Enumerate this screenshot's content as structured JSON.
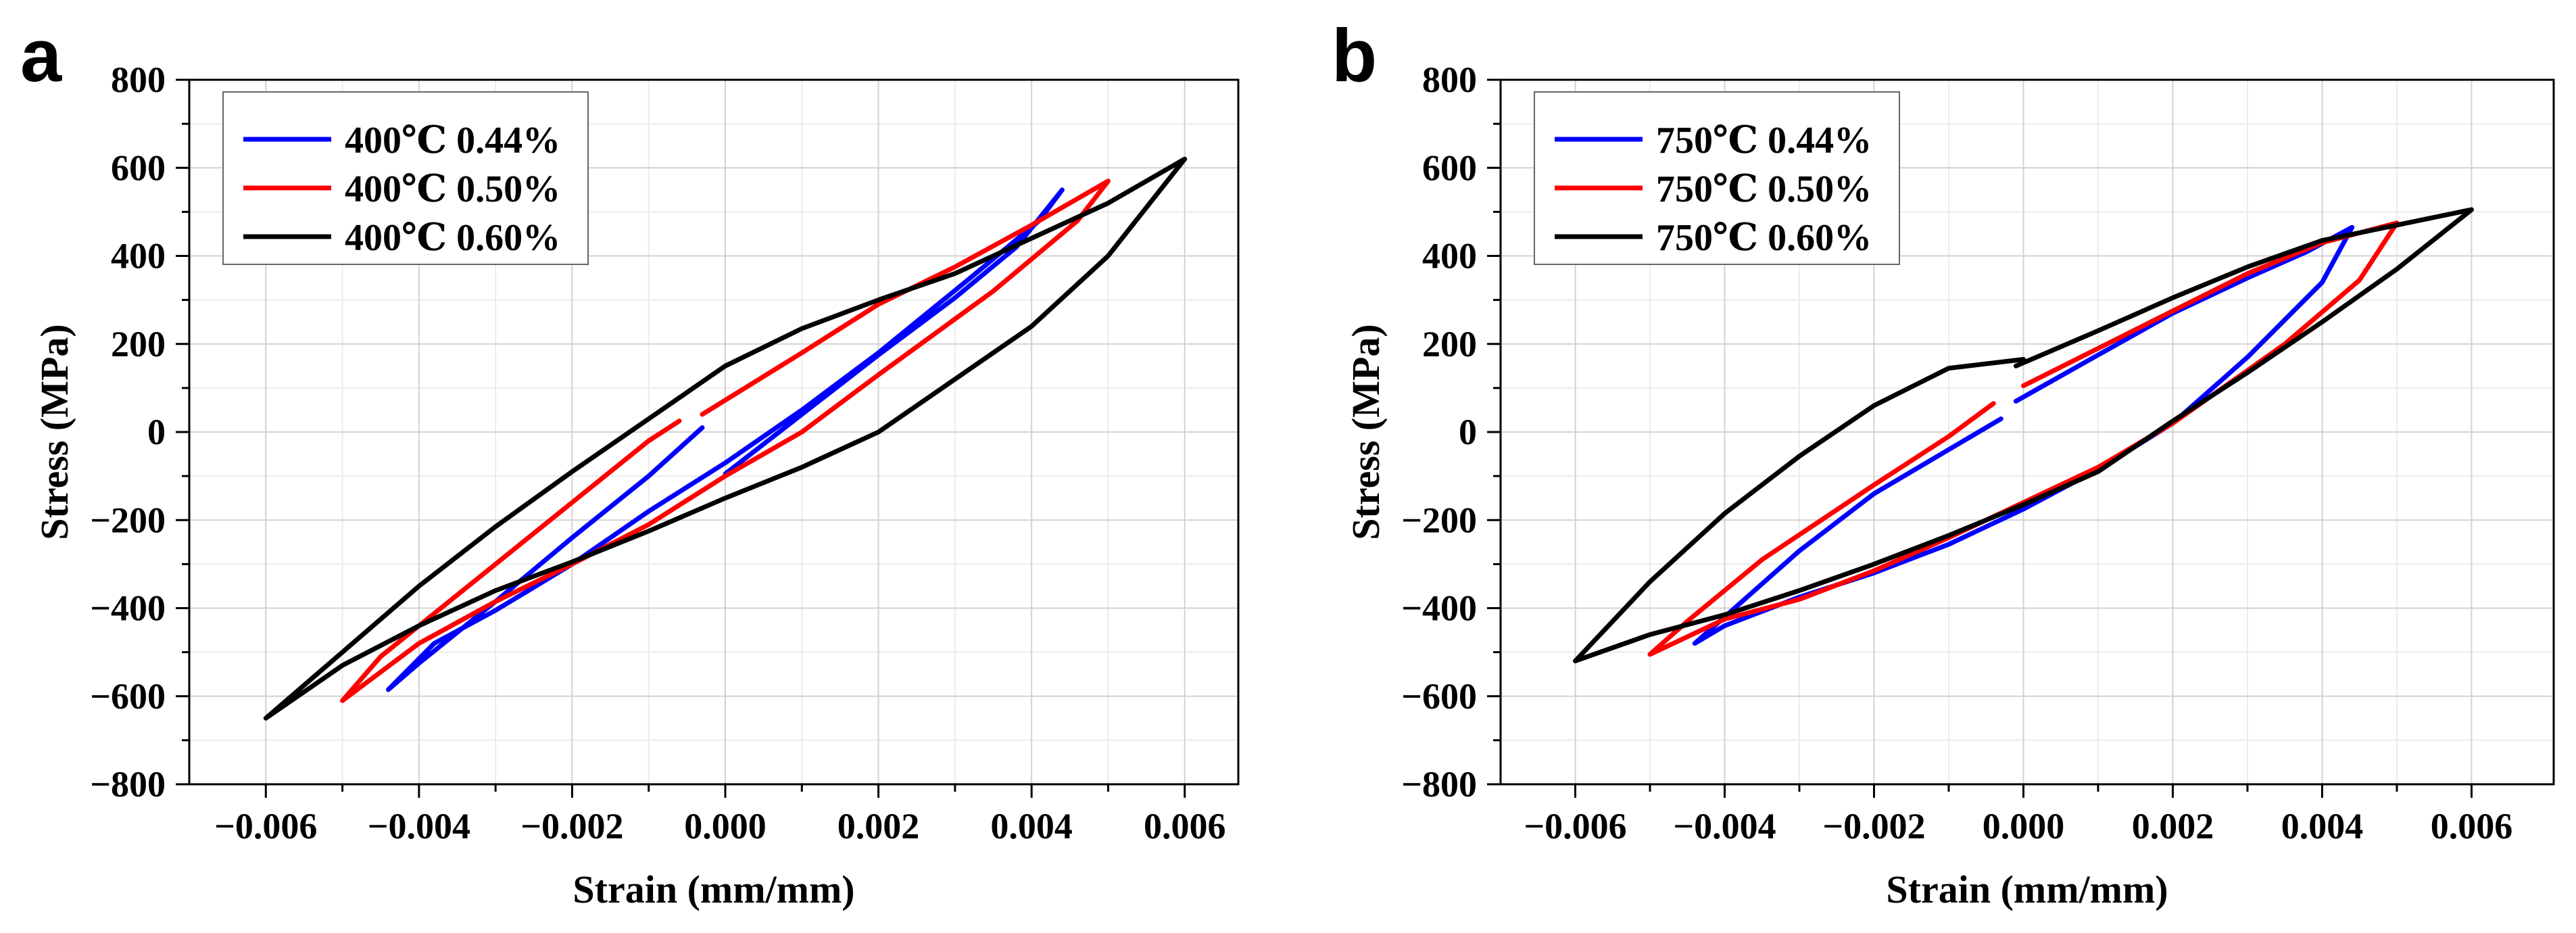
{
  "chart_data": [
    {
      "type": "line",
      "panel_label": "a",
      "xlabel": "Strain (mm/mm)",
      "ylabel": "Stress (MPa)",
      "xlim": [
        -0.007,
        0.0067
      ],
      "ylim": [
        -800,
        800
      ],
      "xticks": [
        -0.006,
        -0.004,
        -0.002,
        0.0,
        0.002,
        0.004,
        0.006
      ],
      "xtick_labels": [
        "−0.006",
        "−0.004",
        "−0.002",
        "0.000",
        "0.002",
        "0.004",
        "0.006"
      ],
      "yticks": [
        -800,
        -600,
        -400,
        -200,
        0,
        200,
        400,
        600,
        800
      ],
      "ytick_labels": [
        "−800",
        "−600",
        "−400",
        "−200",
        "0",
        "200",
        "400",
        "600",
        "800"
      ],
      "grid": true,
      "legend_position": "top-left",
      "series": [
        {
          "name": "400℃ 0.44%",
          "color": "#0000ff",
          "x": [
            0.0,
            0.001,
            0.002,
            0.003,
            0.0038,
            0.0044,
            0.0041,
            0.0032,
            0.002,
            0.001,
            0.0,
            -0.001,
            -0.002,
            -0.003,
            -0.0038,
            -0.0044,
            -0.004,
            -0.003,
            -0.002,
            -0.001,
            -0.0003
          ],
          "y": [
            -95,
            40,
            175,
            305,
            420,
            550,
            480,
            350,
            180,
            50,
            -70,
            -180,
            -300,
            -405,
            -480,
            -585,
            -525,
            -385,
            -240,
            -100,
            10
          ]
        },
        {
          "name": "400℃ 0.50%",
          "color": "#ff0000",
          "x": [
            -0.0003,
            0.001,
            0.002,
            0.003,
            0.004,
            0.005,
            0.0046,
            0.0035,
            0.002,
            0.001,
            0.0,
            -0.001,
            -0.002,
            -0.003,
            -0.004,
            -0.005,
            -0.0045,
            -0.0035,
            -0.002,
            -0.001,
            -0.0006
          ],
          "y": [
            40,
            180,
            290,
            375,
            470,
            570,
            480,
            320,
            130,
            0,
            -100,
            -210,
            -300,
            -385,
            -480,
            -610,
            -510,
            -370,
            -160,
            -20,
            25
          ]
        },
        {
          "name": "400℃ 0.60%",
          "color": "#000000",
          "x": [
            0.0,
            0.001,
            0.002,
            0.003,
            0.004,
            0.005,
            0.006,
            0.005,
            0.004,
            0.003,
            0.002,
            0.001,
            0.0,
            -0.001,
            -0.002,
            -0.003,
            -0.004,
            -0.005,
            -0.006,
            -0.005,
            -0.004,
            -0.003,
            -0.002,
            -0.001,
            0.0
          ],
          "y": [
            150,
            235,
            300,
            360,
            440,
            520,
            620,
            400,
            240,
            120,
            0,
            -80,
            -150,
            -225,
            -295,
            -360,
            -440,
            -530,
            -650,
            -500,
            -350,
            -215,
            -90,
            30,
            150
          ]
        }
      ]
    },
    {
      "type": "line",
      "panel_label": "b",
      "xlabel": "Strain (mm/mm)",
      "ylabel": "Stress (MPa)",
      "xlim": [
        -0.007,
        0.0071
      ],
      "ylim": [
        -800,
        800
      ],
      "xticks": [
        -0.006,
        -0.004,
        -0.002,
        0.0,
        0.002,
        0.004,
        0.006
      ],
      "xtick_labels": [
        "−0.006",
        "−0.004",
        "−0.002",
        "0.000",
        "0.002",
        "0.004",
        "0.006"
      ],
      "yticks": [
        -800,
        -600,
        -400,
        -200,
        0,
        200,
        400,
        600,
        800
      ],
      "ytick_labels": [
        "−800",
        "−600",
        "−400",
        "−200",
        "0",
        "200",
        "400",
        "600",
        "800"
      ],
      "grid": true,
      "legend_position": "top-left",
      "series": [
        {
          "name": "750℃ 0.44%",
          "color": "#0000ff",
          "x": [
            -0.0001,
            0.001,
            0.002,
            0.003,
            0.0038,
            0.0044,
            0.004,
            0.003,
            0.002,
            0.001,
            0.0,
            -0.001,
            -0.002,
            -0.003,
            -0.004,
            -0.0044,
            -0.004,
            -0.003,
            -0.002,
            -0.001,
            -0.0003
          ],
          "y": [
            70,
            175,
            270,
            350,
            410,
            465,
            340,
            170,
            20,
            -85,
            -175,
            -255,
            -320,
            -375,
            -440,
            -480,
            -420,
            -270,
            -140,
            -40,
            30
          ]
        },
        {
          "name": "750℃ 0.50%",
          "color": "#ff0000",
          "x": [
            0.0,
            0.001,
            0.002,
            0.003,
            0.004,
            0.005,
            0.0045,
            0.0035,
            0.002,
            0.001,
            0.0,
            -0.001,
            -0.002,
            -0.003,
            -0.004,
            -0.005,
            -0.0045,
            -0.0035,
            -0.002,
            -0.001,
            -0.0004
          ],
          "y": [
            105,
            190,
            275,
            360,
            430,
            475,
            345,
            200,
            20,
            -80,
            -160,
            -240,
            -315,
            -380,
            -425,
            -505,
            -430,
            -290,
            -120,
            -10,
            65
          ]
        },
        {
          "name": "750℃ 0.60%",
          "color": "#000000",
          "x": [
            -0.0001,
            0.001,
            0.002,
            0.003,
            0.004,
            0.005,
            0.006,
            0.005,
            0.004,
            0.003,
            0.002,
            0.001,
            0.0,
            -0.001,
            -0.002,
            -0.003,
            -0.004,
            -0.005,
            -0.006,
            -0.005,
            -0.004,
            -0.003,
            -0.002,
            -0.001,
            0.0
          ],
          "y": [
            150,
            230,
            305,
            375,
            435,
            470,
            505,
            370,
            250,
            135,
            25,
            -90,
            -165,
            -235,
            -300,
            -360,
            -415,
            -460,
            -520,
            -340,
            -185,
            -55,
            60,
            145,
            165
          ]
        }
      ]
    }
  ]
}
